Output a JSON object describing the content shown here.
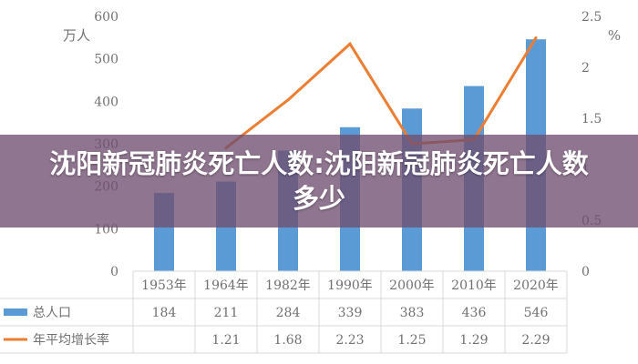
{
  "overlay": {
    "title": "沈阳新冠肺炎死亡人数:沈阳新冠肺炎死亡人数多少"
  },
  "chart_data": {
    "type": "bar",
    "categories": [
      "1953年",
      "1964年",
      "1982年",
      "1990年",
      "2000年",
      "2010年",
      "2020年"
    ],
    "y_left": {
      "unit": "万人",
      "ticks": [
        0,
        100,
        200,
        300,
        400,
        500,
        600
      ],
      "range": [
        0,
        600
      ]
    },
    "y_right": {
      "unit": "%",
      "ticks": [
        0,
        0.5,
        1,
        1.5,
        2,
        2.5
      ],
      "tick_labels": [
        "0",
        "0.5",
        "1",
        "1.5",
        "2",
        "2.5"
      ],
      "range": [
        0,
        2.5
      ]
    },
    "grid": false,
    "legend": "table-bottom",
    "series": [
      {
        "name": "总人口",
        "type": "bar",
        "axis": "left",
        "color": "#5b9bd5",
        "values": [
          184,
          211,
          284,
          339,
          383,
          436,
          546
        ],
        "labels": [
          "184",
          "211",
          "284",
          "339",
          "383",
          "436",
          "546"
        ]
      },
      {
        "name": "年平均增长率",
        "type": "line",
        "axis": "right",
        "color": "#ed7d31",
        "values": [
          null,
          1.21,
          1.68,
          2.23,
          1.25,
          1.29,
          2.29
        ],
        "labels": [
          "",
          "1.21",
          "1.68",
          "2.23",
          "1.25",
          "1.29",
          "2.29"
        ]
      }
    ]
  }
}
